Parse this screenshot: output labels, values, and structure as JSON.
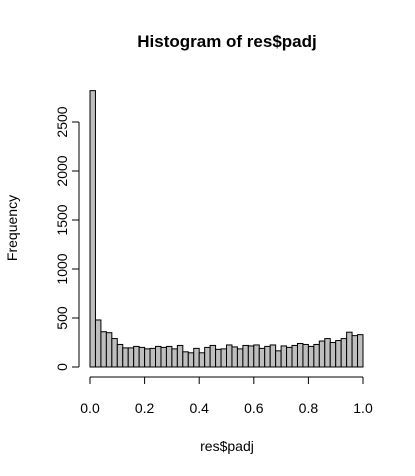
{
  "chart_data": {
    "type": "bar",
    "title": "Histogram of res$padj",
    "xlabel": "res$padj",
    "ylabel": "Frequency",
    "xlim": [
      0,
      1
    ],
    "ylim": [
      0,
      2800
    ],
    "bin_width": 0.02,
    "bin_starts": [
      0.0,
      0.02,
      0.04,
      0.06,
      0.08,
      0.1,
      0.12,
      0.14,
      0.16,
      0.18,
      0.2,
      0.22,
      0.24,
      0.26,
      0.28,
      0.3,
      0.32,
      0.34,
      0.36,
      0.38,
      0.4,
      0.42,
      0.44,
      0.46,
      0.48,
      0.5,
      0.52,
      0.54,
      0.56,
      0.58,
      0.6,
      0.62,
      0.64,
      0.66,
      0.68,
      0.7,
      0.72,
      0.74,
      0.76,
      0.78,
      0.8,
      0.82,
      0.84,
      0.86,
      0.88,
      0.9,
      0.92,
      0.94,
      0.96,
      0.98
    ],
    "values": [
      2820,
      480,
      360,
      350,
      290,
      230,
      195,
      195,
      210,
      200,
      185,
      190,
      210,
      200,
      210,
      185,
      220,
      155,
      145,
      190,
      145,
      200,
      220,
      180,
      185,
      225,
      205,
      185,
      220,
      215,
      225,
      190,
      210,
      225,
      165,
      215,
      200,
      220,
      240,
      230,
      210,
      230,
      265,
      290,
      250,
      270,
      290,
      355,
      320,
      330
    ],
    "x_ticks": [
      "0.0",
      "0.2",
      "0.4",
      "0.6",
      "0.8",
      "1.0"
    ],
    "y_ticks": [
      "0",
      "500",
      "1000",
      "1500",
      "2000",
      "2500"
    ],
    "grid": false,
    "legend": "none",
    "colors": {
      "bar_fill": "#bebebe",
      "bar_stroke": "#000000"
    }
  }
}
